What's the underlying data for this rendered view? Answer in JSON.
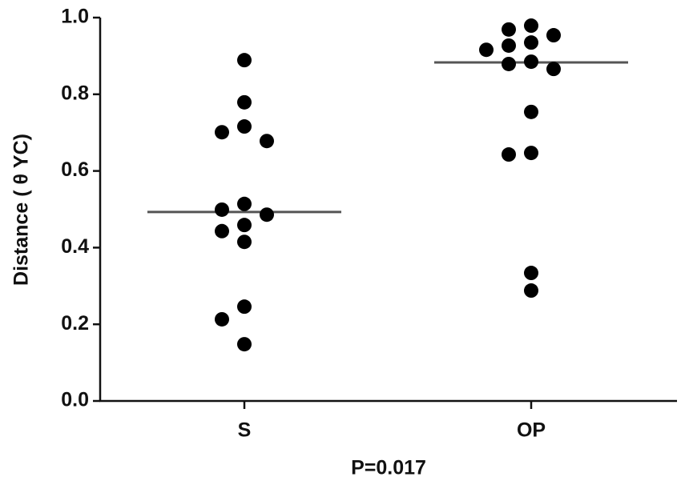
{
  "chart_data": {
    "type": "dot",
    "xlabel": "P=0.017",
    "ylabel": "Distance ( θ YC)",
    "categories": [
      "S",
      "OP"
    ],
    "groups": [
      {
        "values": [
          0.889,
          0.779,
          0.716,
          0.701,
          0.678,
          0.514,
          0.499,
          0.486,
          0.459,
          0.443,
          0.415,
          0.246,
          0.213,
          0.148
        ],
        "median": 0.493
      },
      {
        "values": [
          0.979,
          0.969,
          0.954,
          0.935,
          0.927,
          0.916,
          0.885,
          0.879,
          0.866,
          0.754,
          0.647,
          0.643,
          0.334,
          0.288
        ],
        "median": 0.883
      }
    ],
    "color": "#000000",
    "median_color": "#555555",
    "ylim": [
      0,
      1
    ],
    "yticks": [
      {
        "value": 0,
        "label": "0.0"
      },
      0.2,
      0.4,
      0.6,
      0.8,
      {
        "value": 1,
        "label": "1.0"
      }
    ]
  }
}
